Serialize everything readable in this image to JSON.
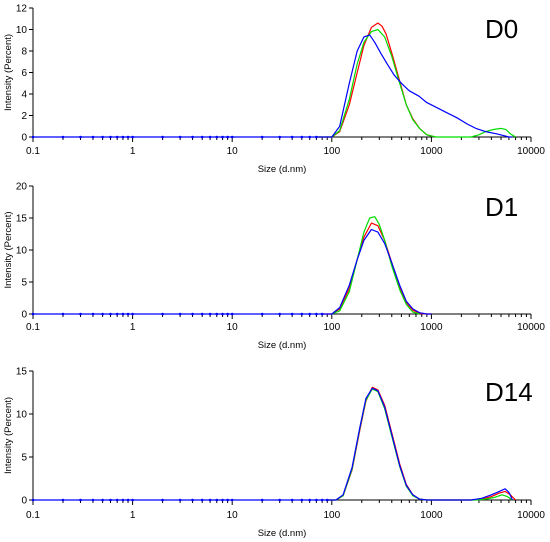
{
  "chart_data": [
    {
      "type": "line",
      "title": "D0",
      "xlabel": "Size (d.nm)",
      "ylabel": "Intensity (Percent)",
      "x_scale": "log",
      "xlim": [
        0.1,
        10000
      ],
      "ylim": [
        0,
        12
      ],
      "x_ticks": [
        "0.1",
        "1",
        "10",
        "100",
        "1000",
        "10000"
      ],
      "y_ticks": [
        "0",
        "2",
        "4",
        "6",
        "8",
        "10",
        "12"
      ],
      "series": [
        {
          "color": "#ff0000",
          "x": [
            70,
            100,
            120,
            150,
            180,
            210,
            250,
            290,
            320,
            350,
            400,
            480,
            560,
            650,
            760,
            900,
            1100
          ],
          "y": [
            0,
            0,
            0.5,
            3.0,
            6.0,
            8.5,
            10.2,
            10.6,
            10.3,
            9.6,
            7.8,
            5.2,
            3.0,
            1.7,
            0.8,
            0.2,
            0
          ]
        },
        {
          "color": "#00dd00",
          "x": [
            70,
            100,
            120,
            150,
            180,
            210,
            250,
            290,
            340,
            400,
            480,
            560,
            650,
            760,
            900,
            1100,
            2500,
            3000,
            3500,
            4200,
            5000,
            5600,
            6200,
            7000
          ],
          "y": [
            0,
            0,
            0.6,
            3.5,
            6.8,
            8.8,
            9.8,
            10.0,
            9.3,
            7.5,
            5.0,
            3.0,
            1.6,
            0.8,
            0.2,
            0,
            0,
            0.2,
            0.5,
            0.7,
            0.8,
            0.7,
            0.3,
            0
          ]
        },
        {
          "color": "#0000ff",
          "x": [
            70,
            100,
            120,
            150,
            180,
            210,
            240,
            270,
            310,
            360,
            420,
            500,
            600,
            750,
            900,
            1100,
            1400,
            1800,
            2300,
            2800,
            3500,
            4500,
            5500,
            6000,
            6500
          ],
          "y": [
            0,
            0,
            1.0,
            5.0,
            8.0,
            9.3,
            9.5,
            8.8,
            7.8,
            6.8,
            5.8,
            5.0,
            4.3,
            3.8,
            3.2,
            2.8,
            2.3,
            1.8,
            1.2,
            0.8,
            0.5,
            0.3,
            0.1,
            0,
            0
          ]
        }
      ]
    },
    {
      "type": "line",
      "title": "D1",
      "xlabel": "Size (d.nm)",
      "ylabel": "Intensity (Percent)",
      "x_scale": "log",
      "xlim": [
        0.1,
        10000
      ],
      "ylim": [
        0,
        20
      ],
      "x_ticks": [
        "0.1",
        "1",
        "10",
        "100",
        "1000",
        "10000"
      ],
      "y_ticks": [
        "0",
        "5",
        "10",
        "15",
        "20"
      ],
      "series": [
        {
          "color": "#ff0000",
          "x": [
            80,
            100,
            120,
            150,
            180,
            210,
            250,
            290,
            340,
            400,
            480,
            560,
            650,
            760,
            900,
            1000
          ],
          "y": [
            0,
            0,
            0.8,
            4.0,
            8.5,
            12.0,
            14.2,
            13.8,
            11.5,
            8.0,
            4.2,
            1.8,
            0.6,
            0.1,
            0,
            0
          ]
        },
        {
          "color": "#00dd00",
          "x": [
            100,
            120,
            150,
            180,
            210,
            240,
            270,
            300,
            340,
            400,
            480,
            560,
            650,
            760
          ],
          "y": [
            0,
            0.5,
            3.5,
            8.5,
            12.8,
            15.0,
            15.2,
            14.0,
            11.5,
            7.5,
            3.8,
            1.5,
            0.3,
            0
          ]
        },
        {
          "color": "#0000ff",
          "x": [
            80,
            100,
            120,
            150,
            180,
            210,
            250,
            290,
            340,
            400,
            480,
            560,
            650,
            760,
            900,
            1000
          ],
          "y": [
            0,
            0,
            1.0,
            4.5,
            8.5,
            11.5,
            13.2,
            12.8,
            11.0,
            8.0,
            4.5,
            2.0,
            0.8,
            0.2,
            0,
            0
          ]
        }
      ]
    },
    {
      "type": "line",
      "title": "D14",
      "xlabel": "Size (d.nm)",
      "ylabel": "Intensity (Percent)",
      "x_scale": "log",
      "xlim": [
        0.1,
        10000
      ],
      "ylim": [
        0,
        15
      ],
      "x_ticks": [
        "0.1",
        "1",
        "10",
        "100",
        "1000",
        "10000"
      ],
      "y_ticks": [
        "0",
        "5",
        "10",
        "15"
      ],
      "series": [
        {
          "color": "#ff0000",
          "x": [
            90,
            110,
            130,
            160,
            190,
            220,
            255,
            290,
            340,
            400,
            480,
            560,
            650,
            760,
            900,
            1000,
            2500,
            3200,
            4000,
            4800,
            5500,
            6200,
            7000
          ],
          "y": [
            0,
            0,
            0.5,
            3.5,
            8.0,
            11.5,
            13.1,
            12.8,
            11.0,
            7.8,
            4.2,
            1.8,
            0.6,
            0.1,
            0,
            0,
            0,
            0.1,
            0.4,
            0.8,
            1.0,
            0.6,
            0
          ]
        },
        {
          "color": "#00dd00",
          "x": [
            90,
            110,
            130,
            160,
            190,
            220,
            255,
            290,
            340,
            400,
            480,
            560,
            650,
            760,
            900,
            1000,
            2800,
            3500,
            4300,
            5100,
            5800,
            6500
          ],
          "y": [
            0,
            0,
            0.5,
            3.6,
            8.2,
            11.6,
            12.9,
            12.6,
            10.6,
            7.4,
            3.9,
            1.6,
            0.5,
            0.1,
            0,
            0,
            0,
            0.1,
            0.3,
            0.6,
            0.4,
            0
          ]
        },
        {
          "color": "#0000ff",
          "x": [
            90,
            110,
            130,
            160,
            190,
            220,
            255,
            290,
            340,
            400,
            480,
            560,
            650,
            760,
            900,
            1000,
            2500,
            3200,
            4000,
            4800,
            5500,
            6000,
            6500
          ],
          "y": [
            0,
            0,
            0.6,
            3.8,
            8.3,
            11.8,
            13.0,
            12.7,
            10.8,
            7.6,
            4.0,
            1.7,
            0.6,
            0.1,
            0,
            0,
            0,
            0.2,
            0.6,
            1.0,
            1.3,
            0.9,
            0
          ]
        }
      ]
    }
  ]
}
